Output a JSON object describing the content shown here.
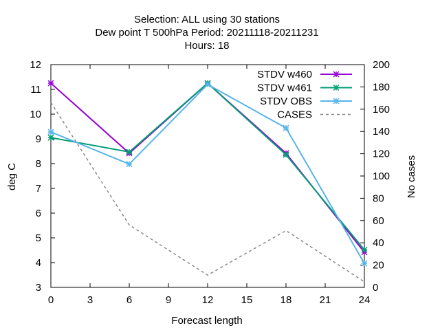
{
  "chart_data": {
    "type": "line",
    "title_lines": [
      "Selection: ALL using    30 stations",
      "Dew point T 500hPa   Period: 20211118-20211231",
      "Hours:  18"
    ],
    "xlabel": "Forecast length",
    "ylabel": "deg C",
    "y2label": "No cases",
    "x": [
      0,
      6,
      12,
      18,
      24
    ],
    "xlim": [
      0,
      24
    ],
    "ylim": [
      3,
      12
    ],
    "y2lim": [
      0,
      200
    ],
    "xticks": [
      0,
      3,
      6,
      9,
      12,
      15,
      18,
      21,
      24
    ],
    "yticks": [
      3,
      4,
      5,
      6,
      7,
      8,
      9,
      10,
      11,
      12
    ],
    "y2ticks": [
      0,
      20,
      40,
      60,
      80,
      100,
      120,
      140,
      160,
      180,
      200
    ],
    "grid": false,
    "legend_position": "top-right",
    "series": [
      {
        "name": "STDV w460",
        "axis": "y",
        "color": "#9400d3",
        "marker": "x",
        "values": [
          11.25,
          8.42,
          11.25,
          8.42,
          4.42
        ]
      },
      {
        "name": "STDV w461",
        "axis": "y",
        "color": "#009e73",
        "marker": "x",
        "values": [
          9.05,
          8.47,
          11.25,
          8.36,
          4.52
        ]
      },
      {
        "name": "STDV OBS",
        "axis": "y",
        "color": "#56b4e9",
        "marker": "x",
        "values": [
          9.28,
          7.98,
          11.2,
          9.44,
          3.97
        ]
      },
      {
        "name": "CASES",
        "axis": "y2",
        "color": "#888888",
        "dashed": true,
        "values": [
          166,
          56,
          11,
          51,
          5
        ]
      }
    ]
  }
}
